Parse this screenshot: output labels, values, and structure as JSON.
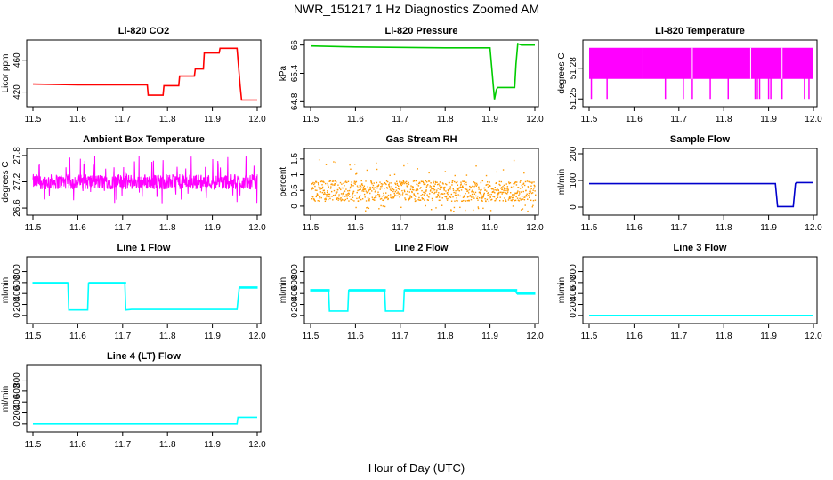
{
  "page": {
    "title": "NWR_151217  1 Hz Diagnostics Zoomed AM",
    "xlabel": "Hour of Day (UTC)"
  },
  "chart_data": [
    {
      "type": "line",
      "title": "Li-820 CO2",
      "ylabel": "Licor ppm",
      "color": "#ff0000",
      "xlim": [
        11.5,
        12.0
      ],
      "ylim": [
        405,
        482
      ],
      "yticks": [
        420,
        460
      ],
      "xticks": [
        11.5,
        11.6,
        11.7,
        11.8,
        11.9,
        12.0
      ],
      "series": [
        {
          "x": [
            11.5,
            11.6,
            11.7,
            11.755,
            11.757,
            11.79,
            11.792,
            11.825,
            11.827,
            11.86,
            11.862,
            11.88,
            11.882,
            11.915,
            11.917,
            11.955,
            11.962,
            11.965,
            12.0
          ],
          "y": [
            430,
            429,
            429,
            429,
            416,
            416,
            428,
            428,
            440,
            440,
            449,
            449,
            469,
            469,
            475,
            475,
            428,
            410,
            410
          ]
        }
      ]
    },
    {
      "type": "line",
      "title": "Li-820 Pressure",
      "ylabel": "kPa",
      "color": "#00cc00",
      "xlim": [
        11.5,
        12.0
      ],
      "ylim": [
        64.75,
        66.05
      ],
      "yticks": [
        64.8,
        65.4,
        66.0
      ],
      "xticks": [
        11.5,
        11.6,
        11.7,
        11.8,
        11.9,
        12.0
      ],
      "series": [
        {
          "x": [
            11.5,
            11.6,
            11.7,
            11.8,
            11.9,
            11.905,
            11.91,
            11.914,
            11.917,
            11.955,
            11.958,
            11.962,
            11.97,
            12.0
          ],
          "y": [
            65.98,
            65.96,
            65.95,
            65.94,
            65.94,
            65.4,
            64.85,
            65.05,
            65.1,
            65.1,
            65.6,
            66.03,
            66.0,
            66.0
          ]
        }
      ]
    },
    {
      "type": "line",
      "title": "Li-820 Temperature",
      "ylabel": "degrees C",
      "color": "#ff00ff",
      "xlim": [
        11.5,
        12.0
      ],
      "ylim": [
        51.245,
        51.305
      ],
      "yticks": [
        51.25,
        51.28
      ],
      "xticks": [
        11.5,
        11.6,
        11.7,
        11.8,
        11.9,
        12.0
      ],
      "series": [
        {
          "x": [
            11.5,
            12.0
          ],
          "y": [
            51.28,
            51.28
          ]
        }
      ]
    },
    {
      "type": "line",
      "title": "Ambient Box Temperature",
      "ylabel": "degrees C",
      "color": "#ff00ff",
      "xlim": [
        11.5,
        12.0
      ],
      "ylim": [
        26.5,
        27.9
      ],
      "yticks": [
        26.6,
        27.2,
        27.8
      ],
      "xticks": [
        11.5,
        11.6,
        11.7,
        11.8,
        11.9,
        12.0
      ],
      "series": [
        {
          "x": [
            11.5,
            12.0
          ],
          "y": [
            27.2,
            27.2
          ]
        }
      ]
    },
    {
      "type": "scatter",
      "title": "Gas Stream RH",
      "ylabel": "percent",
      "color": "#ff9900",
      "xlim": [
        11.5,
        12.0
      ],
      "ylim": [
        -0.2,
        1.75
      ],
      "yticks": [
        0.0,
        0.5,
        1.0,
        1.5
      ],
      "xticks": [
        11.5,
        11.6,
        11.7,
        11.8,
        11.9,
        12.0
      ],
      "series": [
        {
          "x": [
            11.5,
            12.0
          ],
          "y": [
            0.5,
            0.5
          ]
        }
      ]
    },
    {
      "type": "line",
      "title": "Sample Flow",
      "ylabel": "ml/min",
      "color": "#0000cc",
      "xlim": [
        11.5,
        12.0
      ],
      "ylim": [
        -20,
        210
      ],
      "yticks": [
        0,
        100,
        200
      ],
      "xticks": [
        11.5,
        11.6,
        11.7,
        11.8,
        11.9,
        12.0
      ],
      "series": [
        {
          "x": [
            11.5,
            11.7,
            11.9,
            11.915,
            11.92,
            11.955,
            11.96,
            11.962,
            12.0
          ],
          "y": [
            88,
            88,
            88,
            88,
            2,
            2,
            88,
            92,
            92
          ]
        }
      ]
    },
    {
      "type": "line",
      "title": "Line 1 Flow",
      "ylabel": "ml/min",
      "color": "#00ffff",
      "xlim": [
        11.5,
        12.0
      ],
      "ylim": [
        -100,
        1020
      ],
      "yticks": [
        0,
        200,
        400,
        600,
        800
      ],
      "xticks": [
        11.5,
        11.6,
        11.7,
        11.8,
        11.9,
        12.0
      ],
      "series": [
        {
          "x": [
            11.5,
            11.578,
            11.58,
            11.622,
            11.624,
            11.705,
            11.707,
            11.72,
            11.8,
            11.955,
            11.96,
            12.0
          ],
          "y": [
            590,
            580,
            100,
            100,
            590,
            590,
            100,
            110,
            110,
            110,
            510,
            510
          ]
        }
      ]
    },
    {
      "type": "line",
      "title": "Line 2 Flow",
      "ylabel": "ml/min",
      "color": "#00ffff",
      "xlim": [
        11.5,
        12.0
      ],
      "ylim": [
        -100,
        1020
      ],
      "yticks": [
        0,
        200,
        400,
        600,
        800
      ],
      "xticks": [
        11.5,
        11.6,
        11.7,
        11.8,
        11.9,
        12.0
      ],
      "series": [
        {
          "x": [
            11.5,
            11.54,
            11.542,
            11.583,
            11.585,
            11.665,
            11.667,
            11.707,
            11.709,
            11.8,
            11.955,
            11.96,
            12.0
          ],
          "y": [
            460,
            460,
            80,
            80,
            460,
            460,
            80,
            80,
            460,
            460,
            460,
            400,
            400
          ]
        }
      ]
    },
    {
      "type": "line",
      "title": "Line 3 Flow",
      "ylabel": "ml/min",
      "color": "#00ffff",
      "xlim": [
        11.5,
        12.0
      ],
      "ylim": [
        -100,
        1020
      ],
      "yticks": [
        0,
        200,
        400,
        600,
        800
      ],
      "xticks": [
        11.5,
        11.6,
        11.7,
        11.8,
        11.9,
        12.0
      ],
      "series": [
        {
          "x": [
            11.5,
            12.0
          ],
          "y": [
            0,
            0
          ]
        }
      ]
    },
    {
      "type": "line",
      "title": "Line 4 (LT) Flow",
      "ylabel": "ml/min",
      "color": "#00ffff",
      "xlim": [
        11.5,
        12.0
      ],
      "ylim": [
        -100,
        1020
      ],
      "yticks": [
        0,
        200,
        400,
        600,
        800
      ],
      "xticks": [
        11.5,
        11.6,
        11.7,
        11.8,
        11.9,
        12.0
      ],
      "series": [
        {
          "x": [
            11.5,
            11.955,
            11.957,
            12.0
          ],
          "y": [
            0,
            0,
            120,
            120
          ]
        }
      ]
    }
  ]
}
